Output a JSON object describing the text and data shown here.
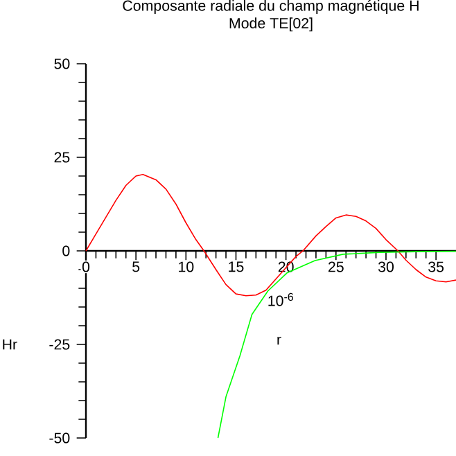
{
  "chart_data": {
    "type": "line",
    "title": "Composante radiale du champ magnétique H",
    "subtitle": "Mode TE[02]",
    "xlabel": "r",
    "ylabel": "Hr",
    "annotations": [
      "10$^{-6}$"
    ],
    "xlim": [
      0,
      37
    ],
    "ylim": [
      -50,
      50
    ],
    "xticks": [
      0,
      5,
      10,
      15,
      20,
      25,
      30,
      35
    ],
    "yticks": [
      -50,
      -25,
      0,
      25,
      50
    ],
    "marker": "none",
    "series": [
      {
        "color": "#ff0000",
        "x": [
          0,
          1,
          2,
          3,
          4,
          5,
          5.7,
          7,
          8,
          9,
          10,
          11,
          11.8,
          13,
          14,
          15,
          16,
          17,
          18,
          19,
          20,
          21,
          21.7,
          23,
          24,
          25,
          26,
          27,
          28,
          29,
          30,
          31.2,
          32,
          33,
          34,
          35,
          36,
          37
        ],
        "values": [
          0,
          4.5,
          9,
          13.5,
          17.5,
          20,
          20.4,
          19,
          16.5,
          12.5,
          7.5,
          3,
          0,
          -5,
          -9,
          -11.5,
          -12,
          -11.8,
          -10.5,
          -7.5,
          -4.5,
          -1.5,
          0,
          4,
          6.5,
          8.8,
          9.6,
          9.2,
          8,
          6,
          3,
          0,
          -2.5,
          -5,
          -7,
          -8,
          -8.3,
          -7.8
        ]
      },
      {
        "color": "#00ff00",
        "x": [
          13.2,
          14,
          15.4,
          16.6,
          18.2,
          20.1,
          22.9,
          25.7,
          29.4,
          33,
          37
        ],
        "values": [
          -50,
          -39,
          -28,
          -17,
          -10.7,
          -5.9,
          -2.6,
          -0.9,
          -0.4,
          -0.2,
          -0.1
        ]
      }
    ]
  }
}
